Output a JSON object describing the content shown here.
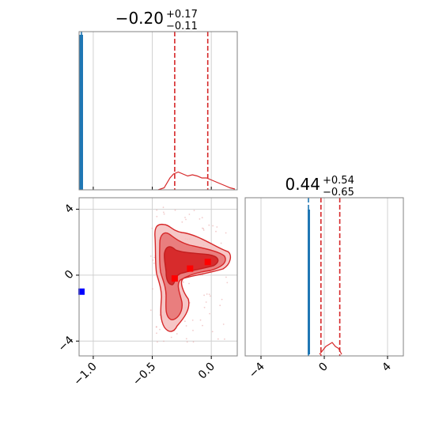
{
  "chart_data": {
    "type": "corner",
    "grid": true,
    "colors": {
      "posterior": "#d62728",
      "reference": "#1f77b4",
      "marker_red": "#ff0000",
      "marker_blue": "#0000ff",
      "grid": "#d0d0d0",
      "frame": "#808080"
    },
    "panels": [
      {
        "id": "param1-marginal",
        "title": {
          "value": "−0.20",
          "plus": "+0.17",
          "minus": "−0.11"
        },
        "xlim": [
          -1.12,
          0.22
        ],
        "xticks": [
          -1.0,
          -0.5,
          0.0
        ],
        "quantile_lines": [
          -0.31,
          -0.2,
          -0.03
        ],
        "reference_line": -1.1,
        "hist_posterior": [
          [
            -0.45,
            0
          ],
          [
            -0.4,
            0.5
          ],
          [
            -0.35,
            3
          ],
          [
            -0.32,
            4
          ],
          [
            -0.28,
            4.5
          ],
          [
            -0.24,
            4
          ],
          [
            -0.2,
            3.5
          ],
          [
            -0.16,
            3.8
          ],
          [
            -0.12,
            3.5
          ],
          [
            -0.08,
            3
          ],
          [
            -0.04,
            3
          ],
          [
            0.0,
            2.5
          ],
          [
            0.04,
            2
          ],
          [
            0.08,
            1.5
          ],
          [
            0.12,
            1
          ],
          [
            0.16,
            0.5
          ],
          [
            0.2,
            0.2
          ]
        ]
      },
      {
        "id": "param2-marginal",
        "title": {
          "value": "0.44",
          "plus": "+0.54",
          "minus": "−0.65"
        },
        "xlim": [
          -5,
          5
        ],
        "xticks": [
          -4,
          0,
          4
        ],
        "quantile_lines": [
          -0.21,
          0.44,
          0.98
        ],
        "reference_line": -1.0,
        "hist_posterior": [
          [
            -0.3,
            0
          ],
          [
            -0.1,
            1
          ],
          [
            0.1,
            2
          ],
          [
            0.3,
            2.5
          ],
          [
            0.5,
            3
          ],
          [
            0.7,
            2
          ],
          [
            0.9,
            1.5
          ],
          [
            1.1,
            0
          ]
        ]
      },
      {
        "id": "joint-panel",
        "xlim": [
          -1.12,
          0.22
        ],
        "ylim": [
          -4.9,
          4.7
        ],
        "xticks": [
          -1.0,
          -0.5,
          0.0
        ],
        "yticks": [
          -4,
          0,
          4
        ],
        "red_markers": [
          [
            -0.31,
            -0.2
          ],
          [
            -0.18,
            0.4
          ],
          [
            -0.03,
            0.8
          ]
        ],
        "blue_marker": [
          -1.1,
          -1.0
        ],
        "blob_center": [
          -0.22,
          0.7
        ]
      }
    ]
  }
}
